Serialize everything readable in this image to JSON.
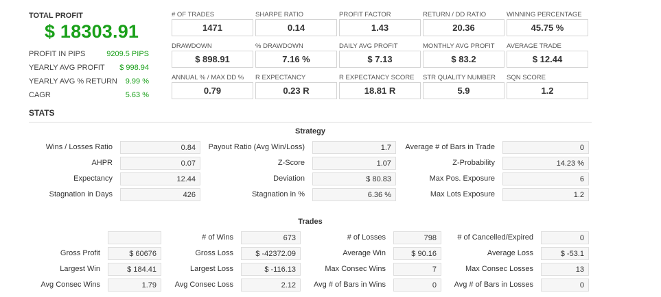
{
  "summary": {
    "total_profit_label": "TOTAL PROFIT",
    "total_profit_value": "$ 18303.91",
    "rows": [
      {
        "label": "PROFIT IN PIPS",
        "value": "9209.5 PIPS"
      },
      {
        "label": "YEARLY AVG PROFIT",
        "value": "$ 998.94"
      },
      {
        "label": "YEARLY AVG % RETURN",
        "value": "9.99 %"
      },
      {
        "label": "CAGR",
        "value": "5.63 %"
      }
    ]
  },
  "metrics": [
    {
      "label": "# OF TRADES",
      "value": "1471"
    },
    {
      "label": "SHARPE RATIO",
      "value": "0.14"
    },
    {
      "label": "PROFIT FACTOR",
      "value": "1.43"
    },
    {
      "label": "RETURN / DD RATIO",
      "value": "20.36"
    },
    {
      "label": "WINNING PERCENTAGE",
      "value": "45.75 %"
    },
    {
      "label": "DRAWDOWN",
      "value": "$ 898.91"
    },
    {
      "label": "% DRAWDOWN",
      "value": "7.16 %"
    },
    {
      "label": "DAILY AVG PROFIT",
      "value": "$ 7.13"
    },
    {
      "label": "MONTHLY AVG PROFIT",
      "value": "$ 83.2"
    },
    {
      "label": "AVERAGE TRADE",
      "value": "$ 12.44"
    },
    {
      "label": "ANNUAL % / MAX DD %",
      "value": "0.79"
    },
    {
      "label": "R EXPECTANCY",
      "value": "0.23 R"
    },
    {
      "label": "R EXPECTANCY SCORE",
      "value": "18.81 R"
    },
    {
      "label": "STR QUALITY NUMBER",
      "value": "5.9"
    },
    {
      "label": "SQN SCORE",
      "value": "1.2"
    }
  ],
  "stats_title": "STATS",
  "strategy": {
    "title": "Strategy",
    "rows": [
      [
        {
          "label": "Wins / Losses Ratio",
          "value": "0.84"
        },
        {
          "label": "Payout Ratio (Avg Win/Loss)",
          "value": "1.7"
        },
        {
          "label": "Average # of Bars in Trade",
          "value": "0"
        }
      ],
      [
        {
          "label": "AHPR",
          "value": "0.07"
        },
        {
          "label": "Z-Score",
          "value": "1.07"
        },
        {
          "label": "Z-Probability",
          "value": "14.23 %"
        }
      ],
      [
        {
          "label": "Expectancy",
          "value": "12.44"
        },
        {
          "label": "Deviation",
          "value": "$ 80.83"
        },
        {
          "label": "Max Pos. Exposure",
          "value": "6"
        }
      ],
      [
        {
          "label": "Stagnation in Days",
          "value": "426"
        },
        {
          "label": "Stagnation in %",
          "value": "6.36 %"
        },
        {
          "label": "Max Lots Exposure",
          "value": "1.2"
        }
      ]
    ]
  },
  "trades": {
    "title": "Trades",
    "rows": [
      [
        {
          "label": "",
          "value": ""
        },
        {
          "label": "# of Wins",
          "value": "673"
        },
        {
          "label": "# of Losses",
          "value": "798"
        },
        {
          "label": "# of Cancelled/Expired",
          "value": "0"
        }
      ],
      [
        {
          "label": "Gross Profit",
          "value": "$ 60676"
        },
        {
          "label": "Gross Loss",
          "value": "$ -42372.09"
        },
        {
          "label": "Average Win",
          "value": "$ 90.16"
        },
        {
          "label": "Average Loss",
          "value": "$ -53.1"
        }
      ],
      [
        {
          "label": "Largest Win",
          "value": "$ 184.41"
        },
        {
          "label": "Largest Loss",
          "value": "$ -116.13"
        },
        {
          "label": "Max Consec Wins",
          "value": "7"
        },
        {
          "label": "Max Consec Losses",
          "value": "13"
        }
      ],
      [
        {
          "label": "Avg Consec Wins",
          "value": "1.79"
        },
        {
          "label": "Avg Consec Loss",
          "value": "2.12"
        },
        {
          "label": "Avg # of Bars in Wins",
          "value": "0"
        },
        {
          "label": "Avg # of Bars in Losses",
          "value": "0"
        }
      ]
    ]
  }
}
